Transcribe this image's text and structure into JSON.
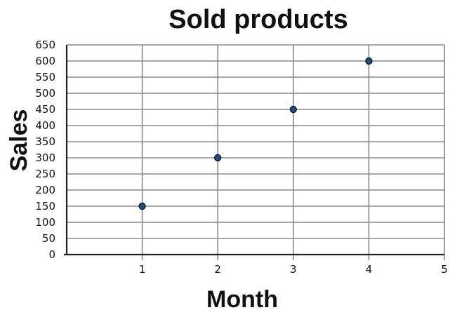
{
  "chart_data": {
    "type": "scatter",
    "title": "Sold products",
    "xlabel": "Month",
    "ylabel": "Sales",
    "xlim": [
      0,
      5
    ],
    "ylim": [
      0,
      650
    ],
    "x_ticks": [
      1,
      2,
      3,
      4,
      5
    ],
    "y_ticks": [
      0,
      50,
      100,
      150,
      200,
      250,
      300,
      350,
      400,
      450,
      500,
      550,
      600,
      650
    ],
    "grid": true,
    "legend": "none",
    "series": [
      {
        "x": [
          1,
          2,
          3,
          4
        ],
        "y": [
          150,
          300,
          450,
          600
        ],
        "color": "#1d4f7a"
      }
    ],
    "gridline_color": "#8a8a8a",
    "axis_color": "#222222"
  }
}
